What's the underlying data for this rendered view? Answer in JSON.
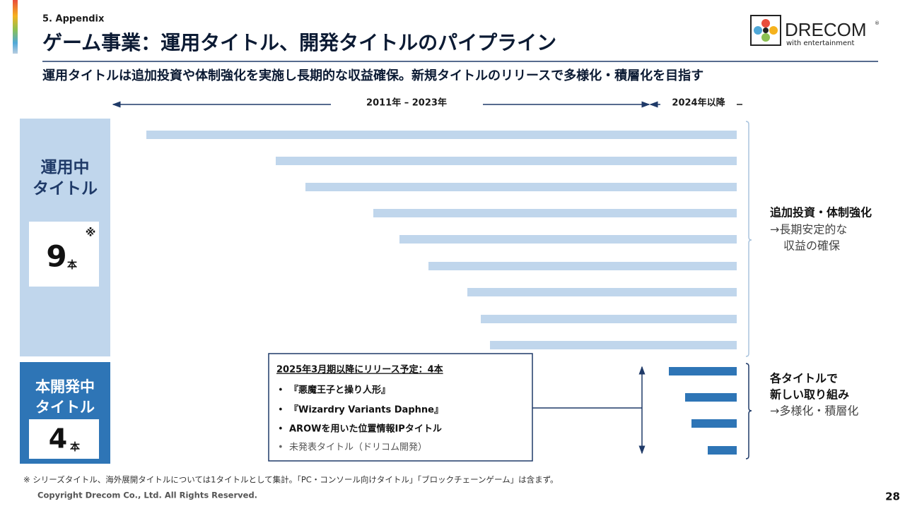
{
  "header": {
    "section": "5. Appendix",
    "title": "ゲーム事業：運用タイトル、開発タイトルのパイプライン",
    "subtitle": "運用タイトルは追加投資や体制強化を実施し長期的な収益確保。新規タイトルのリリースで多様化・積層化を目指す",
    "logo": {
      "name": "DRECOM",
      "tagline": "with entertainment",
      "mark": "®"
    }
  },
  "timeline": {
    "past": "2011年 – 2023年",
    "future": "2024年以降"
  },
  "operating": {
    "label": [
      "運用中",
      "タイトル"
    ],
    "count": "9",
    "unit": "本",
    "note_mark": "※",
    "comment": [
      "追加投資・体制強化",
      "→長期安定的な",
      "収益の確保"
    ]
  },
  "development": {
    "label": [
      "本開発中",
      "タイトル"
    ],
    "count": "4",
    "unit": "本",
    "comment": [
      "各タイトルで",
      "新しい取り組み",
      "→多様化・積層化"
    ],
    "box": {
      "heading": "2025年3月期以降にリリース予定：4本",
      "items": [
        "『悪魔王子と操り人形』",
        "『Wizardry Variants Daphne』",
        "AROWを用いた位置情報IPタイトル",
        "未発表タイトル（ドリコム開発）"
      ]
    }
  },
  "footnote": "※ シリーズタイトル、海外展開タイトルについては1タイトルとして集計。「PC・コンソール向けタイトル」「ブロックチェーンゲーム」は含まず。",
  "copyright": "Copyright Drecom Co., Ltd. All Rights Reserved.",
  "page_number": "28"
}
